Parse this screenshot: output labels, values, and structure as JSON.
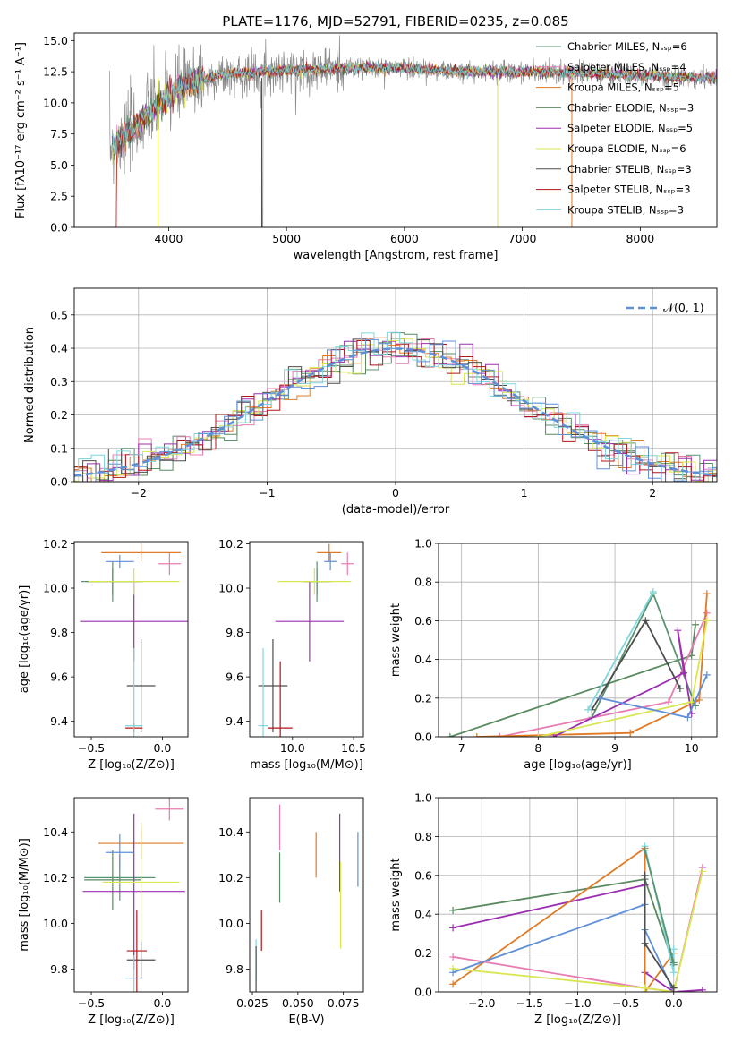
{
  "colors": [
    "#5b9270",
    "#e87cb2",
    "#e07a25",
    "#5a8a60",
    "#9c2fb0",
    "#d8e64f",
    "#4d4d4d",
    "#b2171a",
    "#7fd6dd",
    "#8a8a8a",
    "#5f8fd8"
  ],
  "chart_data": [
    {
      "type": "line",
      "title": "PLATE=1176, MJD=52791, FIBERID=0235, z=0.085",
      "xlabel": "wavelength [Angstrom, rest frame]",
      "ylabel": "Flux [fλ10⁻¹⁷ erg cm⁻² s⁻¹ A⁻¹]",
      "xlim": [
        3200,
        8650
      ],
      "ylim": [
        0,
        15.6
      ],
      "xticks": [
        4000,
        5000,
        6000,
        7000,
        8000
      ],
      "yticks": [
        0.0,
        2.5,
        5.0,
        7.5,
        10.0,
        12.5,
        15.0
      ],
      "legend_position": "top-right",
      "series": [
        {
          "name": "Chabrier MILES, N_SSP=6",
          "color_index": 0
        },
        {
          "name": "Salpeter MILES, N_SSP=4",
          "color_index": 1
        },
        {
          "name": "Kroupa MILES, N_SSP=5",
          "color_index": 2
        },
        {
          "name": "Chabrier ELODIE, N_SSP=3",
          "color_index": 3
        },
        {
          "name": "Salpeter ELODIE, N_SSP=5",
          "color_index": 4
        },
        {
          "name": "Kroupa ELODIE, N_SSP=6",
          "color_index": 5
        },
        {
          "name": "Chabrier STELIB, N_SSP=3",
          "color_index": 6
        },
        {
          "name": "Salpeter STELIB, N_SSP=3",
          "color_index": 7
        },
        {
          "name": "Kroupa STELIB, N_SSP=3",
          "color_index": 8
        }
      ],
      "continuum": {
        "x": [
          3500,
          3600,
          3800,
          4000,
          4200,
          4500,
          4800,
          5000,
          5500,
          6000,
          6500,
          7000,
          7500,
          8000,
          8500,
          8650
        ],
        "y": [
          6.5,
          7.0,
          8.8,
          10.6,
          11.7,
          12.3,
          12.5,
          12.6,
          12.8,
          12.8,
          12.5,
          12.5,
          12.4,
          12.2,
          12.0,
          12.0
        ]
      }
    },
    {
      "type": "area",
      "xlabel": "(data-model)/error",
      "ylabel": "Normed distribution",
      "xlim": [
        -2.5,
        2.5
      ],
      "ylim": [
        0,
        0.58
      ],
      "xticks": [
        -2,
        -1,
        0,
        1,
        2
      ],
      "yticks": [
        0.0,
        0.1,
        0.2,
        0.3,
        0.4,
        0.5
      ],
      "grid": true,
      "legend": "𝒩(0, 1)",
      "legend_position": "top-right",
      "gaussian": {
        "mu": 0,
        "sigma": 1
      }
    },
    {
      "type": "scatter",
      "xlabel": "Z [log₁₀(Z/Z⊙)]",
      "ylabel": "age  [log₁₀(age/yr)]",
      "xlim": [
        -0.62,
        0.18
      ],
      "ylim": [
        9.33,
        10.21
      ],
      "xticks": [
        -0.5,
        0.0
      ],
      "yticks": [
        9.4,
        9.6,
        9.8,
        10.0,
        10.2
      ],
      "points": [
        {
          "x": -0.35,
          "y": 10.03,
          "ex": 0.22,
          "ey": 0.09,
          "c": 0
        },
        {
          "x": 0.05,
          "y": 10.11,
          "ex": 0.08,
          "ey": 0.05,
          "c": 1
        },
        {
          "x": -0.15,
          "y": 10.16,
          "ex": 0.28,
          "ey": 0.04,
          "c": 2
        },
        {
          "x": -0.35,
          "y": 10.03,
          "ex": 0.18,
          "ey": 0.06,
          "c": 3
        },
        {
          "x": -0.2,
          "y": 9.85,
          "ex": 0.38,
          "ey": 0.18,
          "c": 4
        },
        {
          "x": -0.2,
          "y": 10.03,
          "ex": 0.32,
          "ey": 0.06,
          "c": 5
        },
        {
          "x": -0.15,
          "y": 9.56,
          "ex": 0.1,
          "ey": 0.21,
          "c": 6
        },
        {
          "x": -0.2,
          "y": 9.37,
          "ex": 0.06,
          "ey": 0.02,
          "c": 7
        },
        {
          "x": -0.2,
          "y": 9.38,
          "ex": 0.06,
          "ey": 0.35,
          "c": 8
        },
        {
          "x": -0.3,
          "y": 10.12,
          "ex": 0.1,
          "ey": 0.03,
          "c": 10
        }
      ]
    },
    {
      "type": "scatter",
      "xlabel": "mass [log₁₀(M/M⊙)]",
      "ylabel": "",
      "xlim": [
        9.65,
        10.58
      ],
      "ylim": [
        9.33,
        10.21
      ],
      "xticks": [
        10.0,
        10.5
      ],
      "yticks": [
        9.4,
        9.6,
        9.8,
        10.0,
        10.2
      ],
      "points": [
        {
          "x": 10.2,
          "y": 10.03,
          "ex": 0.1,
          "ey": 0.09,
          "c": 0
        },
        {
          "x": 10.45,
          "y": 10.11,
          "ex": 0.05,
          "ey": 0.05,
          "c": 1
        },
        {
          "x": 10.3,
          "y": 10.16,
          "ex": 0.1,
          "ey": 0.04,
          "c": 2
        },
        {
          "x": 10.2,
          "y": 10.03,
          "ex": 0.12,
          "ey": 0.06,
          "c": 3
        },
        {
          "x": 10.14,
          "y": 9.85,
          "ex": 0.28,
          "ey": 0.18,
          "c": 4
        },
        {
          "x": 10.18,
          "y": 10.03,
          "ex": 0.3,
          "ey": 0.06,
          "c": 5
        },
        {
          "x": 9.84,
          "y": 9.56,
          "ex": 0.12,
          "ey": 0.21,
          "c": 6
        },
        {
          "x": 9.9,
          "y": 9.37,
          "ex": 0.1,
          "ey": 0.3,
          "c": 7
        },
        {
          "x": 9.76,
          "y": 9.38,
          "ex": 0.04,
          "ey": 0.35,
          "c": 8
        },
        {
          "x": 10.31,
          "y": 10.12,
          "ex": 0.05,
          "ey": 0.04,
          "c": 10
        }
      ]
    },
    {
      "type": "line",
      "xlabel": "age  [log₁₀(age/yr)]",
      "ylabel": "mass weight",
      "xlim": [
        6.7,
        10.33
      ],
      "ylim": [
        0,
        1.0
      ],
      "xticks": [
        7,
        8,
        9,
        10
      ],
      "yticks": [
        0.0,
        0.2,
        0.4,
        0.6,
        0.8,
        1.0
      ],
      "grid": true,
      "series": [
        {
          "c": 3,
          "x": [
            6.85,
            10.0,
            10.05
          ],
          "y": [
            0.0,
            0.42,
            0.58
          ]
        },
        {
          "c": 0,
          "x": [
            8.7,
            9.5,
            10.05
          ],
          "y": [
            0.1,
            0.74,
            0.16
          ]
        },
        {
          "c": 1,
          "x": [
            7.5,
            9.7,
            10.2
          ],
          "y": [
            0.0,
            0.18,
            0.64
          ]
        },
        {
          "c": 2,
          "x": [
            7.2,
            9.2,
            10.1,
            10.2
          ],
          "y": [
            0.0,
            0.02,
            0.19,
            0.74
          ]
        },
        {
          "c": 4,
          "x": [
            8.2,
            9.9,
            9.82,
            10.0
          ],
          "y": [
            0.0,
            0.33,
            0.55,
            0.12
          ]
        },
        {
          "c": 5,
          "x": [
            8.0,
            10.0,
            10.2
          ],
          "y": [
            0.0,
            0.18,
            0.6
          ]
        },
        {
          "c": 6,
          "x": [
            8.7,
            9.4,
            9.85
          ],
          "y": [
            0.14,
            0.6,
            0.25
          ]
        },
        {
          "c": 8,
          "x": [
            8.65,
            9.5
          ],
          "y": [
            0.14,
            0.75
          ]
        },
        {
          "c": 10,
          "x": [
            8.8,
            9.95,
            10.2
          ],
          "y": [
            0.2,
            0.1,
            0.32
          ]
        }
      ]
    },
    {
      "type": "scatter",
      "xlabel": "Z [log₁₀(Z/Z⊙)]",
      "ylabel": "mass [log₁₀(M/M⊙)]",
      "xlim": [
        -0.62,
        0.18
      ],
      "ylim": [
        9.7,
        10.55
      ],
      "xticks": [
        -0.5,
        0.0
      ],
      "yticks": [
        9.8,
        10.0,
        10.2,
        10.4
      ],
      "points": [
        {
          "x": -0.3,
          "y": 10.2,
          "ex": 0.25,
          "ey": 0.1,
          "c": 0
        },
        {
          "x": 0.05,
          "y": 10.5,
          "ex": 0.1,
          "ey": 0.05,
          "c": 1
        },
        {
          "x": -0.15,
          "y": 10.35,
          "ex": 0.3,
          "ey": 0.07,
          "c": 2
        },
        {
          "x": -0.35,
          "y": 10.19,
          "ex": 0.2,
          "ey": 0.13,
          "c": 3
        },
        {
          "x": -0.2,
          "y": 10.14,
          "ex": 0.36,
          "ey": 0.34,
          "c": 4
        },
        {
          "x": -0.15,
          "y": 10.18,
          "ex": 0.27,
          "ey": 0.26,
          "c": 5
        },
        {
          "x": -0.15,
          "y": 9.84,
          "ex": 0.1,
          "ey": 0.08,
          "c": 6
        },
        {
          "x": -0.18,
          "y": 9.88,
          "ex": 0.07,
          "ey": 0.18,
          "c": 7
        },
        {
          "x": -0.2,
          "y": 9.76,
          "ex": 0.06,
          "ey": 0.1,
          "c": 8
        },
        {
          "x": -0.3,
          "y": 10.31,
          "ex": 0.1,
          "ey": 0.08,
          "c": 10
        }
      ]
    },
    {
      "type": "scatter",
      "xlabel": "E(B-V)",
      "ylabel": "",
      "xlim": [
        0.0235,
        0.086
      ],
      "ylim": [
        9.7,
        10.55
      ],
      "xticks": [
        0.025,
        0.05,
        0.075
      ],
      "yticks": [
        9.8,
        10.0,
        10.2,
        10.4
      ],
      "points": [
        {
          "x": 0.04,
          "y": 10.2,
          "ex": 0,
          "ey": 0.11,
          "c": 3
        },
        {
          "x": 0.04,
          "y": 10.42,
          "ex": 0,
          "ey": 0.1,
          "c": 1
        },
        {
          "x": 0.06,
          "y": 10.3,
          "ex": 0,
          "ey": 0.1,
          "c": 2
        },
        {
          "x": 0.073,
          "y": 10.31,
          "ex": 0,
          "ey": 0.17,
          "c": 4
        },
        {
          "x": 0.0735,
          "y": 10.08,
          "ex": 0,
          "ey": 0.19,
          "c": 5
        },
        {
          "x": 0.083,
          "y": 10.28,
          "ex": 0,
          "ey": 0.12,
          "c": 10
        },
        {
          "x": 0.03,
          "y": 9.97,
          "ex": 0,
          "ey": 0.09,
          "c": 7
        },
        {
          "x": 0.027,
          "y": 9.84,
          "ex": 0,
          "ey": 0.09,
          "c": 8
        },
        {
          "x": 0.027,
          "y": 9.8,
          "ex": 0,
          "ey": 0.1,
          "c": 6
        }
      ]
    },
    {
      "type": "line",
      "xlabel": "Z [log₁₀(Z/Z⊙)]",
      "ylabel": "mass weight",
      "xlim": [
        -2.45,
        0.45
      ],
      "ylim": [
        0,
        1.0
      ],
      "xticks": [
        -2.0,
        -1.5,
        -1.0,
        -0.5,
        0.0
      ],
      "yticks": [
        0.0,
        0.2,
        0.4,
        0.6,
        0.8,
        1.0
      ],
      "grid": true,
      "series": [
        {
          "c": 3,
          "x": [
            -2.3,
            -0.3,
            0.0
          ],
          "y": [
            0.42,
            0.58,
            0.14
          ]
        },
        {
          "c": 4,
          "x": [
            -2.3,
            -0.3,
            -0.3,
            0.0,
            0.3
          ],
          "y": [
            0.33,
            0.55,
            0.1,
            0.0,
            0.01
          ]
        },
        {
          "c": 2,
          "x": [
            -2.3,
            -0.3,
            -0.3,
            0.0
          ],
          "y": [
            0.04,
            0.74,
            0.0,
            0.2
          ]
        },
        {
          "c": 1,
          "x": [
            -2.3,
            -0.3,
            0.0,
            0.3
          ],
          "y": [
            0.18,
            0.02,
            0.0,
            0.64
          ]
        },
        {
          "c": 5,
          "x": [
            -2.3,
            -0.3,
            0.0,
            0.3
          ],
          "y": [
            0.12,
            0.02,
            0.0,
            0.62
          ]
        },
        {
          "c": 10,
          "x": [
            -2.3,
            -0.3,
            -0.3,
            0.0
          ],
          "y": [
            0.1,
            0.45,
            0.32,
            0.0
          ]
        },
        {
          "c": 6,
          "x": [
            -0.3,
            -0.3,
            0.0
          ],
          "y": [
            0.6,
            0.25,
            0.02
          ]
        },
        {
          "c": 8,
          "x": [
            -0.3,
            0.0,
            0.0
          ],
          "y": [
            0.75,
            0.1,
            0.22
          ]
        },
        {
          "c": 0,
          "x": [
            -0.3,
            0.0
          ],
          "y": [
            0.73,
            0.15
          ]
        }
      ]
    }
  ]
}
